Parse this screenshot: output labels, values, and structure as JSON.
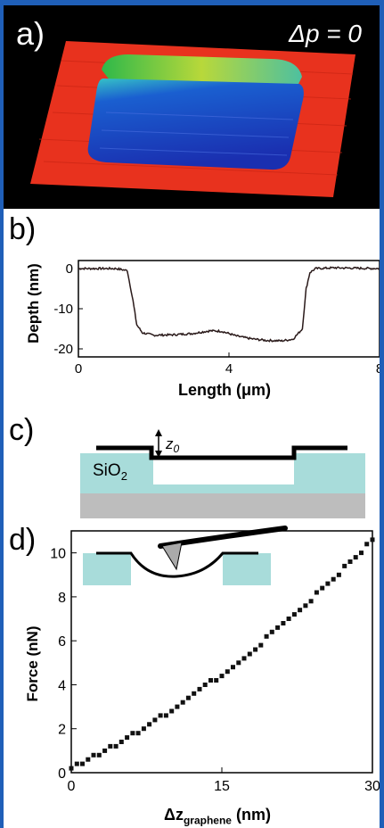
{
  "panels": {
    "a": {
      "label": "a)",
      "annotation": "Δp = 0"
    },
    "b": {
      "label": "b)"
    },
    "c": {
      "label": "c)",
      "material_label": "SiO",
      "material_sub": "2",
      "z_label": "z",
      "z_sub": "0"
    },
    "d": {
      "label": "d)"
    }
  },
  "colors": {
    "substrate": "#a8dcda",
    "base": "#bdbdbd",
    "afm_plateau": "#e8321e",
    "afm_well": "#1a2fb0",
    "frame": "#1f5fb8"
  },
  "chart_data": [
    {
      "type": "line",
      "panel": "b",
      "xlabel": "Length (μm)",
      "ylabel": "Depth (nm)",
      "xlim": [
        0,
        8
      ],
      "ylim": [
        -22,
        2
      ],
      "x_ticks": [
        "0",
        "4",
        "8"
      ],
      "y_ticks": [
        "0",
        "-10",
        "-20"
      ],
      "series": [
        {
          "x": [
            0,
            0.5,
            1.0,
            1.3,
            1.45,
            1.55,
            1.7,
            2.0,
            2.5,
            3.0,
            3.5,
            3.8,
            4.2,
            4.6,
            5.0,
            5.4,
            5.7,
            5.95,
            6.05,
            6.15,
            6.3,
            6.8,
            7.3,
            8.0
          ],
          "y": [
            0,
            0,
            0,
            -0.5,
            -8,
            -14,
            -16,
            -16.6,
            -16.5,
            -16.2,
            -15.5,
            -15.6,
            -16.8,
            -17.5,
            -17.9,
            -18,
            -17.6,
            -15,
            -5,
            -1,
            0,
            0.2,
            0.1,
            0
          ]
        }
      ]
    },
    {
      "type": "scatter",
      "panel": "d",
      "xlabel": "Δz",
      "xlabel_sub": "graphene",
      "xlabel_unit": "(nm)",
      "ylabel": "Force (nN)",
      "xlim": [
        0,
        30
      ],
      "ylim": [
        0,
        11
      ],
      "x_ticks": [
        "0",
        "15",
        "30"
      ],
      "y_ticks": [
        "0",
        "2",
        "4",
        "6",
        "8",
        "10"
      ],
      "series": [
        {
          "x_start": 0,
          "x_end": 30,
          "points": 55,
          "y_start": 0.2,
          "y_end": 10.6,
          "curvature": 0.35
        }
      ]
    }
  ]
}
